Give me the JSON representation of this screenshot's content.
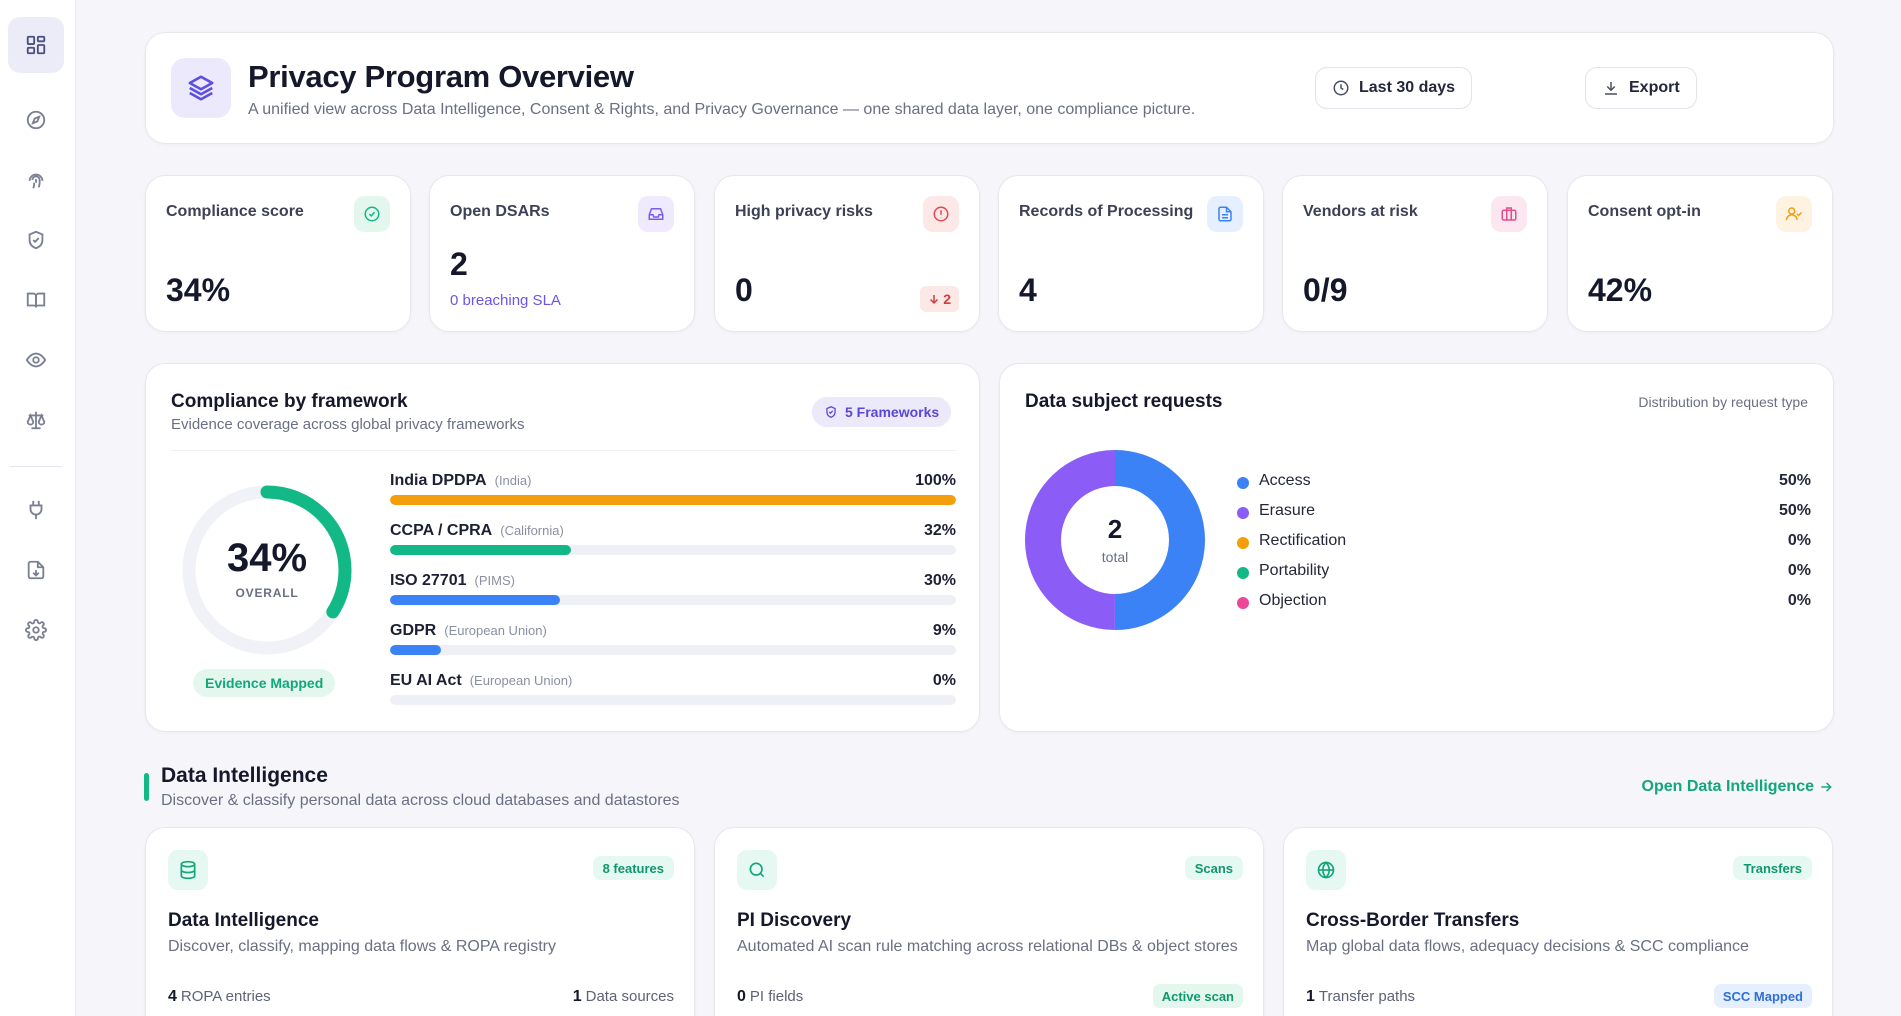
{
  "sidebar": {
    "items": [
      {
        "icon": "dashboard-icon",
        "label": ""
      },
      {
        "icon": "compass-icon",
        "label": ""
      },
      {
        "icon": "fingerprint-icon",
        "label": ""
      },
      {
        "icon": "shield-check-icon",
        "label": ""
      },
      {
        "icon": "book-icon",
        "label": ""
      },
      {
        "icon": "eye-icon",
        "label": ""
      },
      {
        "icon": "scale-icon",
        "label": ""
      },
      {
        "icon": "plug-icon",
        "label": ""
      },
      {
        "icon": "file-download-icon",
        "label": ""
      },
      {
        "icon": "gear-icon",
        "label": ""
      }
    ]
  },
  "header": {
    "title": "Privacy Program Overview",
    "subtitle": "A unified view across Data Intelligence, Consent & Rights, and Privacy Governance — one shared data layer, one compliance picture.",
    "range_label": "Last 30 days",
    "export_label": "Export"
  },
  "stats": [
    {
      "label": "Compliance score",
      "value": "34%",
      "icon": "check-circle-icon",
      "color": "#12b886"
    },
    {
      "label": "Open DSARs",
      "value": "2",
      "sub": "0 breaching SLA",
      "icon": "inbox-icon",
      "color": "#7c5cf0"
    },
    {
      "label": "High privacy risks",
      "value": "0",
      "delta": "2",
      "icon": "alert-circle-icon",
      "color": "#e5484d"
    },
    {
      "label": "Records of Processing",
      "value": "4",
      "icon": "document-icon",
      "color": "#3b82f6"
    },
    {
      "label": "Vendors at risk",
      "value": "0/9",
      "icon": "briefcase-icon",
      "color": "#e34d8c"
    },
    {
      "label": "Consent opt-in",
      "value": "42%",
      "icon": "user-check-icon",
      "color": "#f59e0b"
    }
  ],
  "frameworks": {
    "title": "Compliance by framework",
    "subtitle": "Evidence coverage across global privacy frameworks",
    "badge": "5 Frameworks",
    "overall_value": "34%",
    "overall_label": "OVERALL",
    "overall_fraction": 0.34,
    "evidence_label": "Evidence Mapped",
    "items": [
      {
        "name": "India DPDPA",
        "region": "(India)",
        "pct": "100%",
        "fraction": 1.0,
        "color": "#f59e0b"
      },
      {
        "name": "CCPA / CPRA",
        "region": "(California)",
        "pct": "32%",
        "fraction": 0.32,
        "color": "#12b886"
      },
      {
        "name": "ISO 27701",
        "region": "(PIMS)",
        "pct": "30%",
        "fraction": 0.3,
        "color": "#3b82f6"
      },
      {
        "name": "GDPR",
        "region": "(European Union)",
        "pct": "9%",
        "fraction": 0.09,
        "color": "#3b82f6"
      },
      {
        "name": "EU AI Act",
        "region": "(European Union)",
        "pct": "0%",
        "fraction": 0.0,
        "color": "#3b82f6"
      }
    ]
  },
  "dsr": {
    "title": "Data subject requests",
    "caption": "Distribution by request type",
    "total_value": "2",
    "total_label": "total",
    "items": [
      {
        "name": "Access",
        "pct": "50%",
        "fraction": 0.5,
        "color": "#3b82f6"
      },
      {
        "name": "Erasure",
        "pct": "50%",
        "fraction": 0.5,
        "color": "#8b5cf6"
      },
      {
        "name": "Rectification",
        "pct": "0%",
        "fraction": 0.0,
        "color": "#f59e0b"
      },
      {
        "name": "Portability",
        "pct": "0%",
        "fraction": 0.0,
        "color": "#12b886"
      },
      {
        "name": "Objection",
        "pct": "0%",
        "fraction": 0.0,
        "color": "#ec4899"
      }
    ]
  },
  "data_intelligence": {
    "title": "Data Intelligence",
    "subtitle": "Discover & classify personal data across cloud databases and datastores",
    "link_label": "Open Data Intelligence",
    "cards": [
      {
        "icon": "database-icon",
        "badge": "8 features",
        "title": "Data Intelligence",
        "desc": "Discover, classify, mapping data flows & ROPA registry",
        "stat1_value": "4",
        "stat1_label": "ROPA entries",
        "stat2_value": "1",
        "stat2_label": "Data sources"
      },
      {
        "icon": "search-icon",
        "badge": "Scans",
        "title": "PI Discovery",
        "desc": "Automated AI scan rule matching across relational DBs & object stores",
        "stat1_value": "0",
        "stat1_label": "PI fields",
        "tag": "Active scan"
      },
      {
        "icon": "globe-icon",
        "badge": "Transfers",
        "title": "Cross-Border Transfers",
        "desc": "Map global data flows, adequacy decisions & SCC compliance",
        "stat1_value": "1",
        "stat1_label": "Transfer paths",
        "tag": "SCC Mapped"
      }
    ]
  }
}
